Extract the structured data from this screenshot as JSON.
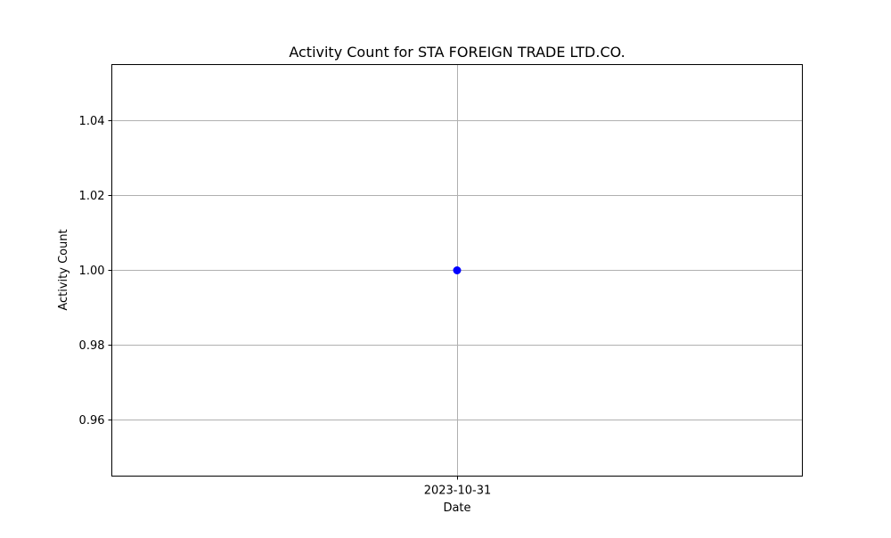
{
  "chart_data": {
    "type": "line",
    "title": "Activity Count for STA FOREIGN TRADE LTD.CO.",
    "xlabel": "Date",
    "ylabel": "Activity Count",
    "x": [
      "2023-10-31"
    ],
    "series": [
      {
        "values": [
          1.0
        ],
        "color": "#0000ff",
        "marker": "circle"
      }
    ],
    "ylim": [
      0.945,
      1.055
    ],
    "y_ticks": [
      0.96,
      0.98,
      1.0,
      1.02,
      1.04
    ],
    "y_tick_labels": [
      "0.96",
      "0.98",
      "1.00",
      "1.02",
      "1.04"
    ],
    "x_tick_labels": [
      "2023-10-31"
    ],
    "grid": true,
    "legend": false
  }
}
